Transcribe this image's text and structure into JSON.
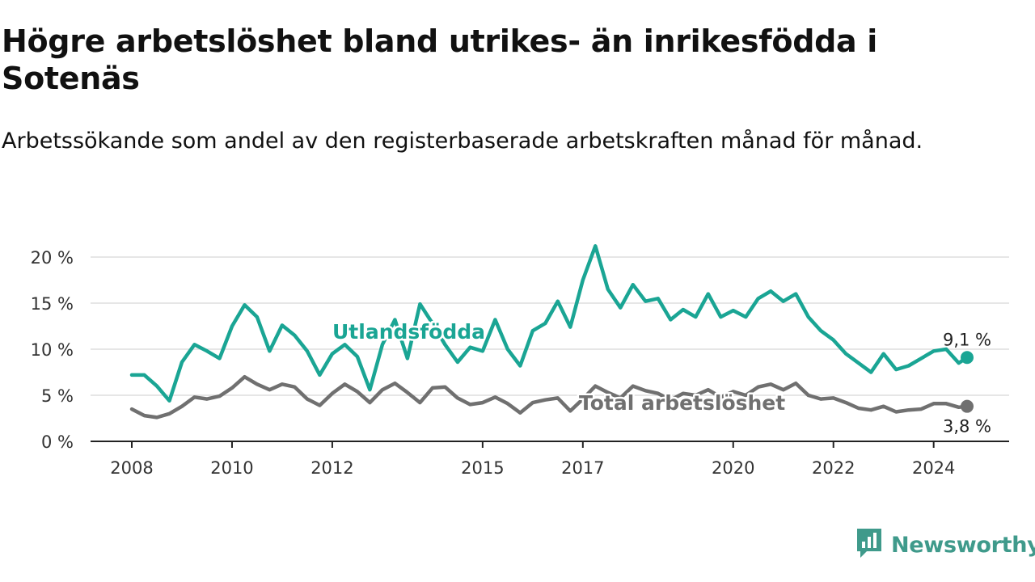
{
  "title": "Högre arbetslöshet bland utrikes- än inrikesfödda i Sotenäs",
  "subtitle": "Arbetssökande som andel av den registerbaserade arbetskraften månad för månad.",
  "brand": {
    "name": "Newsworthy",
    "icon": "newsworthy-logo-icon",
    "color": "#3f9a8b"
  },
  "chart_data": {
    "type": "line",
    "x_ticks": [
      "2008",
      "2010",
      "2012",
      "2015",
      "2017",
      "2020",
      "2022",
      "2024"
    ],
    "y_ticks": [
      "0 %",
      "5 %",
      "10 %",
      "15 %",
      "20 %"
    ],
    "ylim": [
      0,
      20
    ],
    "xlim": [
      "2008-01",
      "2024-09"
    ],
    "grid": true,
    "unit": "%",
    "series": [
      {
        "name": "Utlandsfödda",
        "color": "#1aa594",
        "end_label": "9,1 %",
        "x": [
          "2008-01",
          "2008-04",
          "2008-07",
          "2008-10",
          "2009-01",
          "2009-04",
          "2009-07",
          "2009-10",
          "2010-01",
          "2010-04",
          "2010-07",
          "2010-10",
          "2011-01",
          "2011-04",
          "2011-07",
          "2011-10",
          "2012-01",
          "2012-04",
          "2012-07",
          "2012-10",
          "2013-01",
          "2013-04",
          "2013-07",
          "2013-10",
          "2014-01",
          "2014-04",
          "2014-07",
          "2014-10",
          "2015-01",
          "2015-04",
          "2015-07",
          "2015-10",
          "2016-01",
          "2016-04",
          "2016-07",
          "2016-10",
          "2017-01",
          "2017-04",
          "2017-07",
          "2017-10",
          "2018-01",
          "2018-04",
          "2018-07",
          "2018-10",
          "2019-01",
          "2019-04",
          "2019-07",
          "2019-10",
          "2020-01",
          "2020-04",
          "2020-07",
          "2020-10",
          "2021-01",
          "2021-04",
          "2021-07",
          "2021-10",
          "2022-01",
          "2022-04",
          "2022-07",
          "2022-10",
          "2023-01",
          "2023-04",
          "2023-07",
          "2023-10",
          "2024-01",
          "2024-04",
          "2024-07",
          "2024-09"
        ],
        "values": [
          7.2,
          7.2,
          6.0,
          4.4,
          8.6,
          10.5,
          9.8,
          9.0,
          12.5,
          14.8,
          13.5,
          9.8,
          12.6,
          11.5,
          9.8,
          7.2,
          9.5,
          10.5,
          9.2,
          5.6,
          10.5,
          13.2,
          9.0,
          14.9,
          12.8,
          10.5,
          8.6,
          10.2,
          9.8,
          13.2,
          10.0,
          8.2,
          12.0,
          12.8,
          15.2,
          12.4,
          17.5,
          21.2,
          16.5,
          14.5,
          17.0,
          15.2,
          15.5,
          13.2,
          14.3,
          13.5,
          16.0,
          13.5,
          14.2,
          13.5,
          15.5,
          16.3,
          15.2,
          16.0,
          13.5,
          12.0,
          11.0,
          9.5,
          8.5,
          7.5,
          9.5,
          7.8,
          8.2,
          9.0,
          9.8,
          10.0,
          8.5,
          9.1
        ]
      },
      {
        "name": "Total arbetslöshet",
        "color": "#707070",
        "end_label": "3,8 %",
        "x": [
          "2008-01",
          "2008-04",
          "2008-07",
          "2008-10",
          "2009-01",
          "2009-04",
          "2009-07",
          "2009-10",
          "2010-01",
          "2010-04",
          "2010-07",
          "2010-10",
          "2011-01",
          "2011-04",
          "2011-07",
          "2011-10",
          "2012-01",
          "2012-04",
          "2012-07",
          "2012-10",
          "2013-01",
          "2013-04",
          "2013-07",
          "2013-10",
          "2014-01",
          "2014-04",
          "2014-07",
          "2014-10",
          "2015-01",
          "2015-04",
          "2015-07",
          "2015-10",
          "2016-01",
          "2016-04",
          "2016-07",
          "2016-10",
          "2017-01",
          "2017-04",
          "2017-07",
          "2017-10",
          "2018-01",
          "2018-04",
          "2018-07",
          "2018-10",
          "2019-01",
          "2019-04",
          "2019-07",
          "2019-10",
          "2020-01",
          "2020-04",
          "2020-07",
          "2020-10",
          "2021-01",
          "2021-04",
          "2021-07",
          "2021-10",
          "2022-01",
          "2022-04",
          "2022-07",
          "2022-10",
          "2023-01",
          "2023-04",
          "2023-07",
          "2023-10",
          "2024-01",
          "2024-04",
          "2024-07",
          "2024-09"
        ],
        "values": [
          3.5,
          2.8,
          2.6,
          3.0,
          3.8,
          4.8,
          4.6,
          4.9,
          5.8,
          7.0,
          6.2,
          5.6,
          6.2,
          5.9,
          4.6,
          3.9,
          5.2,
          6.2,
          5.4,
          4.2,
          5.6,
          6.3,
          5.3,
          4.2,
          5.8,
          5.9,
          4.7,
          4.0,
          4.2,
          4.8,
          4.1,
          3.1,
          4.2,
          4.5,
          4.7,
          3.3,
          4.6,
          6.0,
          5.3,
          4.7,
          6.0,
          5.5,
          5.2,
          4.5,
          5.2,
          5.0,
          5.6,
          4.8,
          5.4,
          5.0,
          5.9,
          6.2,
          5.6,
          6.3,
          5.0,
          4.6,
          4.7,
          4.2,
          3.6,
          3.4,
          3.8,
          3.2,
          3.4,
          3.5,
          4.1,
          4.1,
          3.7,
          3.8
        ]
      }
    ]
  }
}
